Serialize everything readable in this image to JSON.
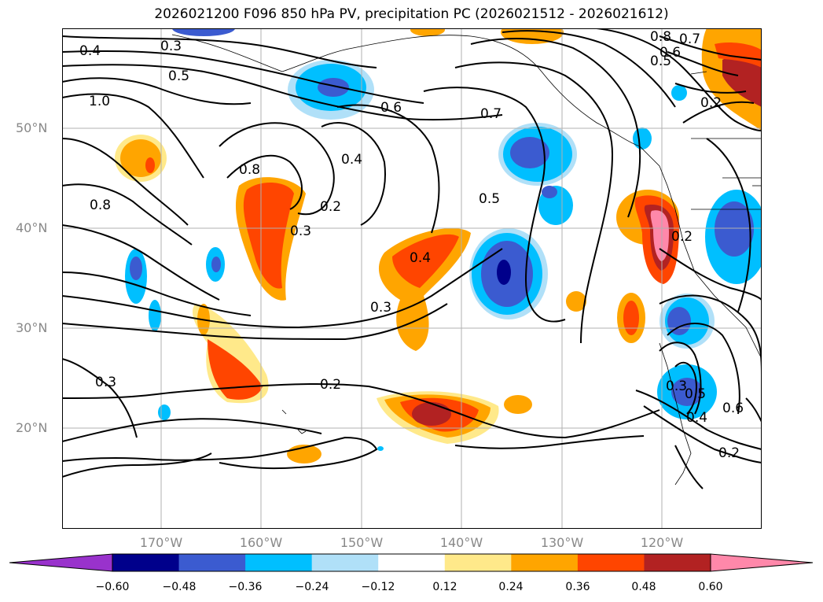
{
  "title": "2026021200 F096 850 hPa PV, precipitation PC (2026021512 - 2026021612)",
  "lat_labels": [
    "50°N",
    "40°N",
    "30°N",
    "20°N"
  ],
  "lon_labels": [
    "170°W",
    "160°W",
    "150°W",
    "140°W",
    "130°W",
    "120°W"
  ],
  "colorbar": {
    "ticks": [
      "−0.60",
      "−0.48",
      "−0.36",
      "−0.24",
      "−0.12",
      "0.12",
      "0.24",
      "0.36",
      "0.48",
      "0.60"
    ],
    "colors": [
      "#9932cc",
      "#00008b",
      "#3b5bd0",
      "#00bfff",
      "#b0e0f8",
      "#ffffff",
      "#ffe98a",
      "#ffa500",
      "#ff4500",
      "#b22222",
      "#ff88aa"
    ]
  },
  "contour_labels": [
    "0.3",
    "0.4",
    "0.5",
    "1.0",
    "0.8",
    "0.8",
    "0.4",
    "0.2",
    "0.3",
    "0.6",
    "0.7",
    "0.5",
    "0.4",
    "0.3",
    "0.2",
    "0.3",
    "0.8",
    "0.7",
    "0.6",
    "0.5",
    "0.2",
    "0.2",
    "0.3",
    "0.5",
    "0.4",
    "0.6",
    "0.2"
  ]
}
